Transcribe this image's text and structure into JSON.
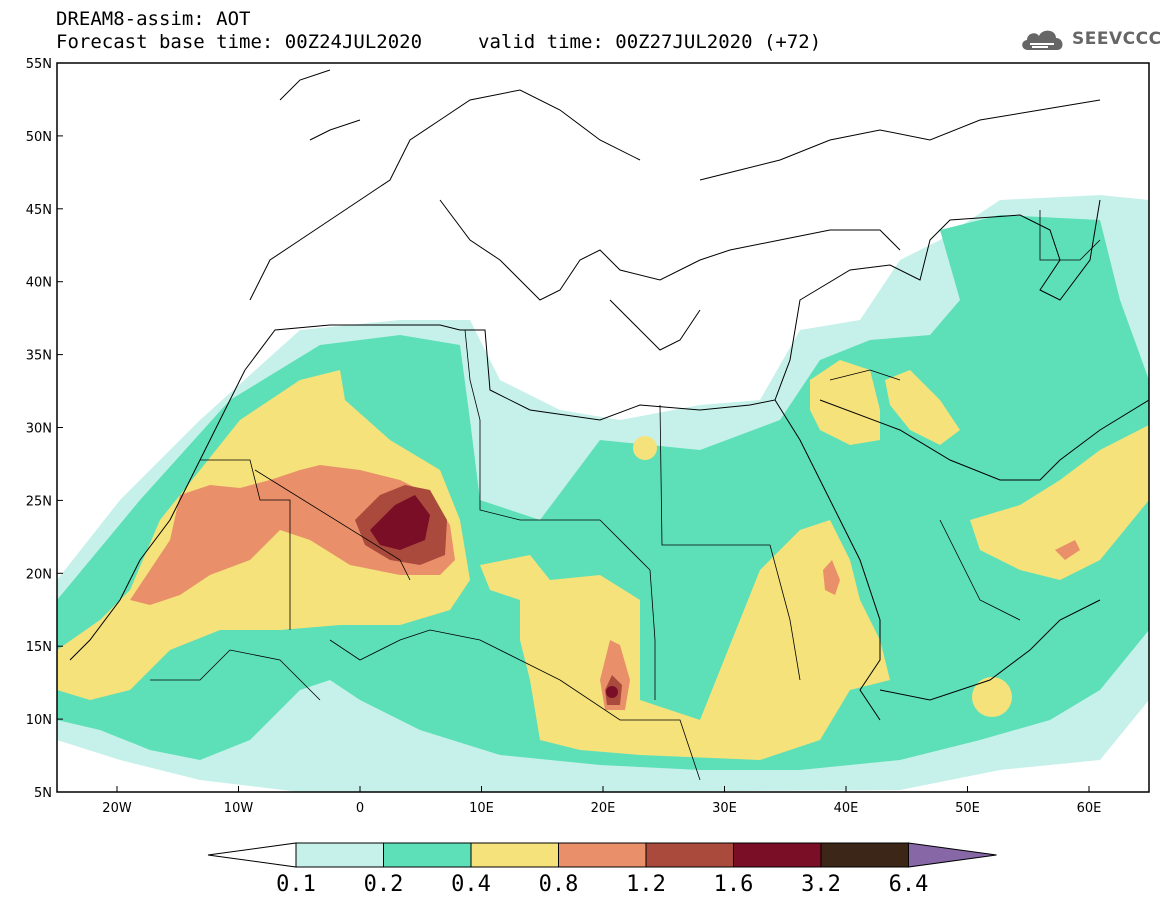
{
  "title": {
    "line1": "DREAM8-assim: AOT",
    "base": "Forecast base time: 00Z24JUL2020",
    "valid": "valid time: 00Z27JUL2020 (+72)"
  },
  "logo": {
    "text": "SEEVCCC",
    "icon": "cloud-icon"
  },
  "map": {
    "lat_ticks": [
      "55N",
      "50N",
      "45N",
      "40N",
      "35N",
      "30N",
      "25N",
      "20N",
      "15N",
      "10N",
      "5N"
    ],
    "lon_ticks": [
      "20W",
      "10W",
      "0",
      "10E",
      "20E",
      "30E",
      "40E",
      "50E",
      "60E"
    ]
  },
  "colorbar": {
    "labels": [
      "0.1",
      "0.2",
      "0.4",
      "0.8",
      "1.2",
      "1.6",
      "3.2",
      "6.4"
    ],
    "colors": [
      "#c6f1ea",
      "#5de0b8",
      "#f5e27a",
      "#e9906a",
      "#aa4a3c",
      "#7a0e26",
      "#3b2617",
      "#8767a6"
    ]
  }
}
